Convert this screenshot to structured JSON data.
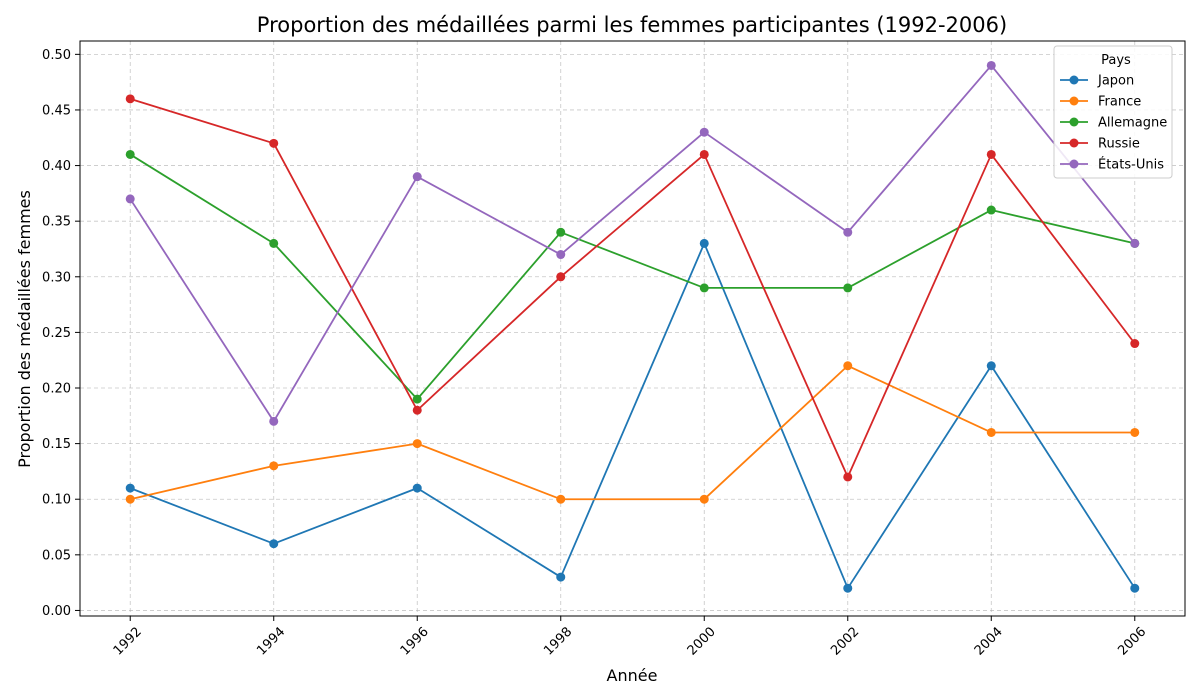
{
  "chart_data": {
    "type": "line",
    "title": "Proportion des médaillées parmi les femmes participantes (1992-2006)",
    "xlabel": "Année",
    "ylabel": "Proportion des médaillées femmes",
    "x": [
      1992,
      1994,
      1996,
      1998,
      2000,
      2002,
      2004,
      2006
    ],
    "xlim": [
      1991.3,
      2006.7
    ],
    "ylim": [
      -0.005,
      0.512
    ],
    "y_ticks": [
      0.0,
      0.05,
      0.1,
      0.15,
      0.2,
      0.25,
      0.3,
      0.35,
      0.4,
      0.45,
      0.5
    ],
    "y_tick_labels": [
      "0.00",
      "0.05",
      "0.10",
      "0.15",
      "0.20",
      "0.25",
      "0.30",
      "0.35",
      "0.40",
      "0.45",
      "0.50"
    ],
    "x_tick_labels": [
      "1992",
      "1994",
      "1996",
      "1998",
      "2000",
      "2002",
      "2004",
      "2006"
    ],
    "grid": true,
    "legend": {
      "title": "Pays",
      "placement": "top-right"
    },
    "series": [
      {
        "name": "Japon",
        "color": "#1f77b4",
        "values": [
          0.11,
          0.06,
          0.11,
          0.03,
          0.33,
          0.02,
          0.22,
          0.02
        ]
      },
      {
        "name": "France",
        "color": "#ff7f0e",
        "values": [
          0.1,
          0.13,
          0.15,
          0.1,
          0.1,
          0.22,
          0.16,
          0.16
        ]
      },
      {
        "name": "Allemagne",
        "color": "#2ca02c",
        "values": [
          0.41,
          0.33,
          0.19,
          0.34,
          0.29,
          0.29,
          0.36,
          0.33
        ]
      },
      {
        "name": "Russie",
        "color": "#d62728",
        "values": [
          0.46,
          0.42,
          0.18,
          0.3,
          0.41,
          0.12,
          0.41,
          0.24
        ]
      },
      {
        "name": "États-Unis",
        "color": "#9467bd",
        "values": [
          0.37,
          0.17,
          0.39,
          0.32,
          0.43,
          0.34,
          0.49,
          0.33
        ]
      }
    ]
  }
}
